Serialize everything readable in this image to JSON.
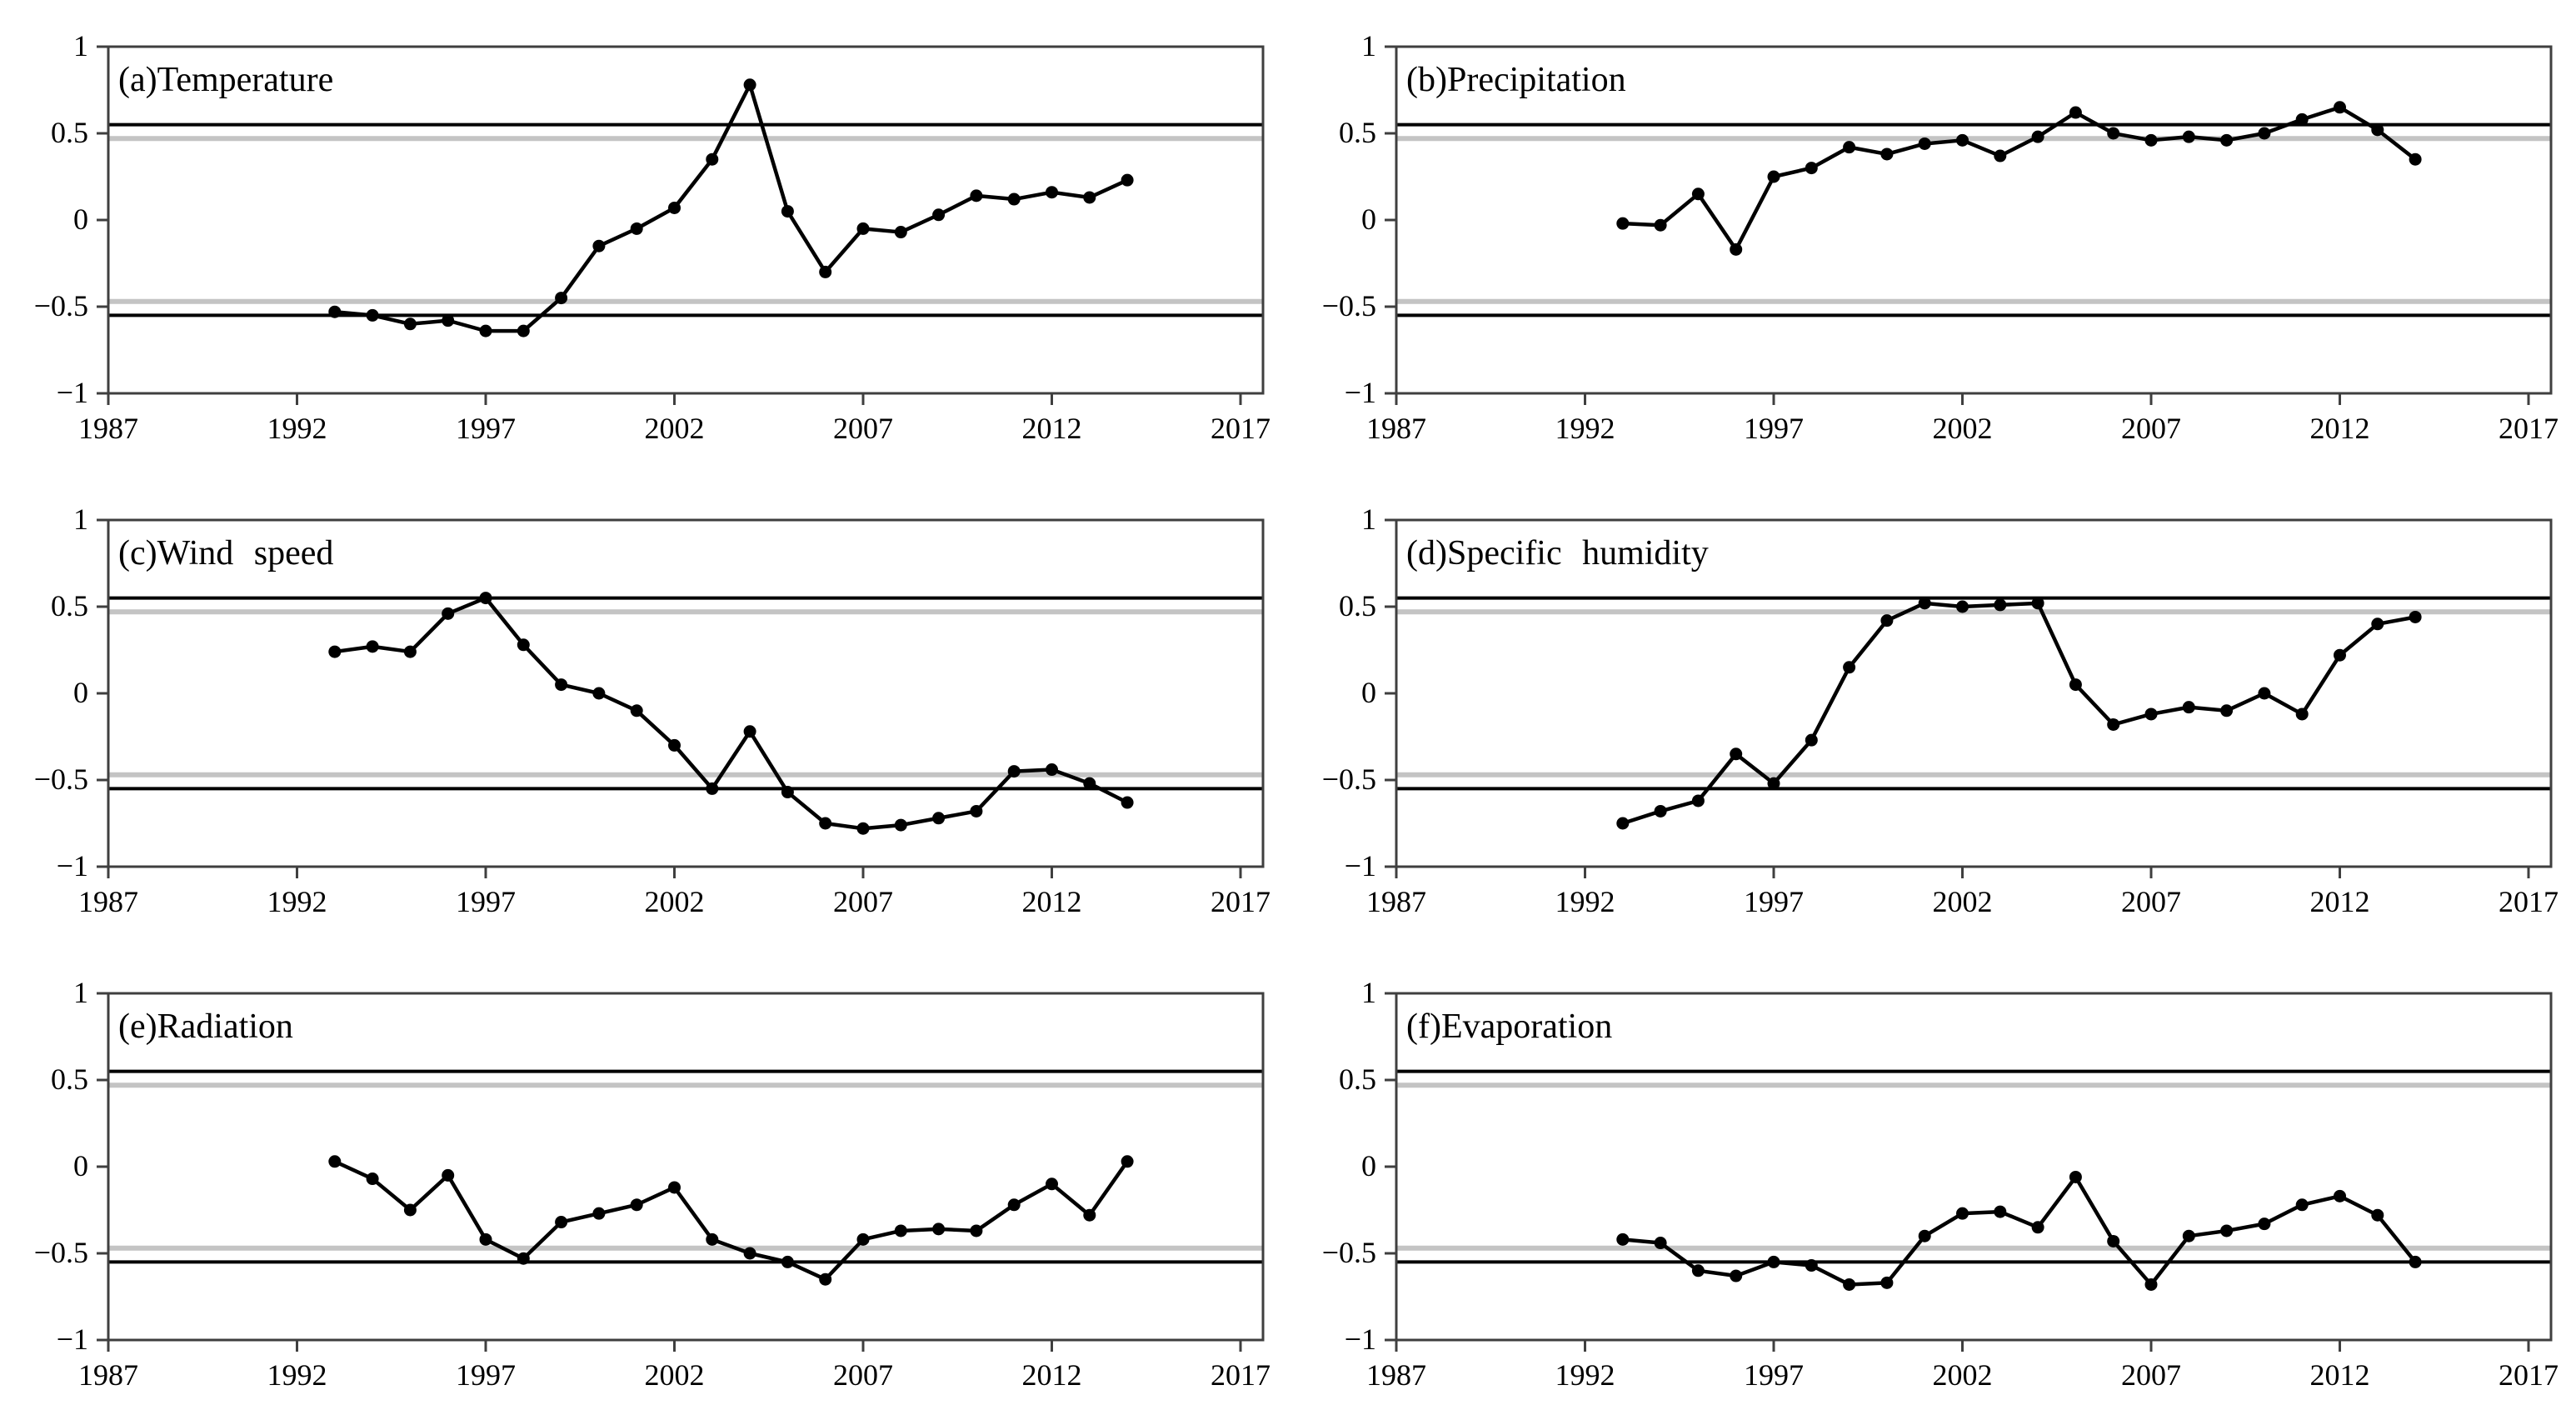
{
  "figure": {
    "description": "Six-panel figure of annual correlation/index time series for climate variables",
    "rows": 3,
    "cols": 2
  },
  "axis": {
    "x_tick_labels": [
      "1987",
      "1992",
      "1997",
      "2002",
      "2007",
      "2012",
      "2017"
    ],
    "x_tick_years": [
      1987,
      1992,
      1997,
      2002,
      2007,
      2012,
      2017
    ],
    "y_tick_labels": [
      "1",
      "0.5",
      "0",
      "−0.5",
      "−1"
    ],
    "y_tick_values": [
      1,
      0.5,
      0,
      -0.5,
      -1
    ],
    "xlim": [
      1987,
      2018.3
    ],
    "ylim": [
      -1,
      1
    ],
    "grid": false,
    "legend": "none"
  },
  "thresholds": {
    "outer_value": 0.55,
    "inner_value": 0.47,
    "outer_color": "#000000",
    "inner_color": "#c4c4c4"
  },
  "style": {
    "line_color": "#000000",
    "marker": "circle",
    "frame_color": "#3f3f3f"
  },
  "chart_data": [
    {
      "type": "line",
      "title": "(a)Temperature",
      "xlabel": "",
      "ylabel": "",
      "x": [
        1993,
        1994,
        1995,
        1996,
        1997,
        1998,
        1999,
        2000,
        2001,
        2002,
        2003,
        2004,
        2005,
        2006,
        2007,
        2008,
        2009,
        2010,
        2011,
        2012,
        2013,
        2014
      ],
      "values": [
        -0.53,
        -0.55,
        -0.6,
        -0.58,
        -0.64,
        -0.64,
        -0.45,
        -0.15,
        -0.05,
        0.07,
        0.35,
        0.78,
        0.05,
        -0.3,
        -0.05,
        -0.07,
        0.03,
        0.14,
        0.12,
        0.16,
        0.13,
        0.23
      ]
    },
    {
      "type": "line",
      "title": "(b)Precipitation",
      "xlabel": "",
      "ylabel": "",
      "x": [
        1993,
        1994,
        1995,
        1996,
        1997,
        1998,
        1999,
        2000,
        2001,
        2002,
        2003,
        2004,
        2005,
        2006,
        2007,
        2008,
        2009,
        2010,
        2011,
        2012,
        2013,
        2014
      ],
      "values": [
        -0.02,
        -0.03,
        0.15,
        -0.17,
        0.25,
        0.3,
        0.42,
        0.38,
        0.44,
        0.46,
        0.37,
        0.48,
        0.62,
        0.5,
        0.46,
        0.48,
        0.46,
        0.5,
        0.58,
        0.65,
        0.52,
        0.35
      ]
    },
    {
      "type": "line",
      "title": "(c)Wind speed",
      "xlabel": "",
      "ylabel": "",
      "x": [
        1993,
        1994,
        1995,
        1996,
        1997,
        1998,
        1999,
        2000,
        2001,
        2002,
        2003,
        2004,
        2005,
        2006,
        2007,
        2008,
        2009,
        2010,
        2011,
        2012,
        2013,
        2014
      ],
      "values": [
        0.24,
        0.27,
        0.24,
        0.46,
        0.55,
        0.28,
        0.05,
        0.0,
        -0.1,
        -0.3,
        -0.55,
        -0.22,
        -0.57,
        -0.75,
        -0.78,
        -0.76,
        -0.72,
        -0.68,
        -0.45,
        -0.44,
        -0.52,
        -0.63
      ]
    },
    {
      "type": "line",
      "title": "(d)Specific humidity",
      "xlabel": "",
      "ylabel": "",
      "x": [
        1993,
        1994,
        1995,
        1996,
        1997,
        1998,
        1999,
        2000,
        2001,
        2002,
        2003,
        2004,
        2005,
        2006,
        2007,
        2008,
        2009,
        2010,
        2011,
        2012,
        2013,
        2014
      ],
      "values": [
        -0.75,
        -0.68,
        -0.62,
        -0.35,
        -0.52,
        -0.27,
        0.15,
        0.42,
        0.52,
        0.5,
        0.51,
        0.52,
        0.05,
        -0.18,
        -0.12,
        -0.08,
        -0.1,
        0.0,
        -0.12,
        0.22,
        0.4,
        0.44
      ]
    },
    {
      "type": "line",
      "title": "(e)Radiation",
      "xlabel": "",
      "ylabel": "",
      "x": [
        1993,
        1994,
        1995,
        1996,
        1997,
        1998,
        1999,
        2000,
        2001,
        2002,
        2003,
        2004,
        2005,
        2006,
        2007,
        2008,
        2009,
        2010,
        2011,
        2012,
        2013,
        2014
      ],
      "values": [
        0.03,
        -0.07,
        -0.25,
        -0.05,
        -0.42,
        -0.53,
        -0.32,
        -0.27,
        -0.22,
        -0.12,
        -0.42,
        -0.5,
        -0.55,
        -0.65,
        -0.42,
        -0.37,
        -0.36,
        -0.37,
        -0.22,
        -0.1,
        -0.28,
        0.03
      ]
    },
    {
      "type": "line",
      "title": "(f)Evaporation",
      "xlabel": "",
      "ylabel": "",
      "x": [
        1993,
        1994,
        1995,
        1996,
        1997,
        1998,
        1999,
        2000,
        2001,
        2002,
        2003,
        2004,
        2005,
        2006,
        2007,
        2008,
        2009,
        2010,
        2011,
        2012,
        2013,
        2014
      ],
      "values": [
        -0.42,
        -0.44,
        -0.6,
        -0.63,
        -0.55,
        -0.57,
        -0.68,
        -0.67,
        -0.4,
        -0.27,
        -0.26,
        -0.35,
        -0.06,
        -0.43,
        -0.68,
        -0.4,
        -0.37,
        -0.33,
        -0.22,
        -0.17,
        -0.28,
        -0.55
      ]
    }
  ]
}
